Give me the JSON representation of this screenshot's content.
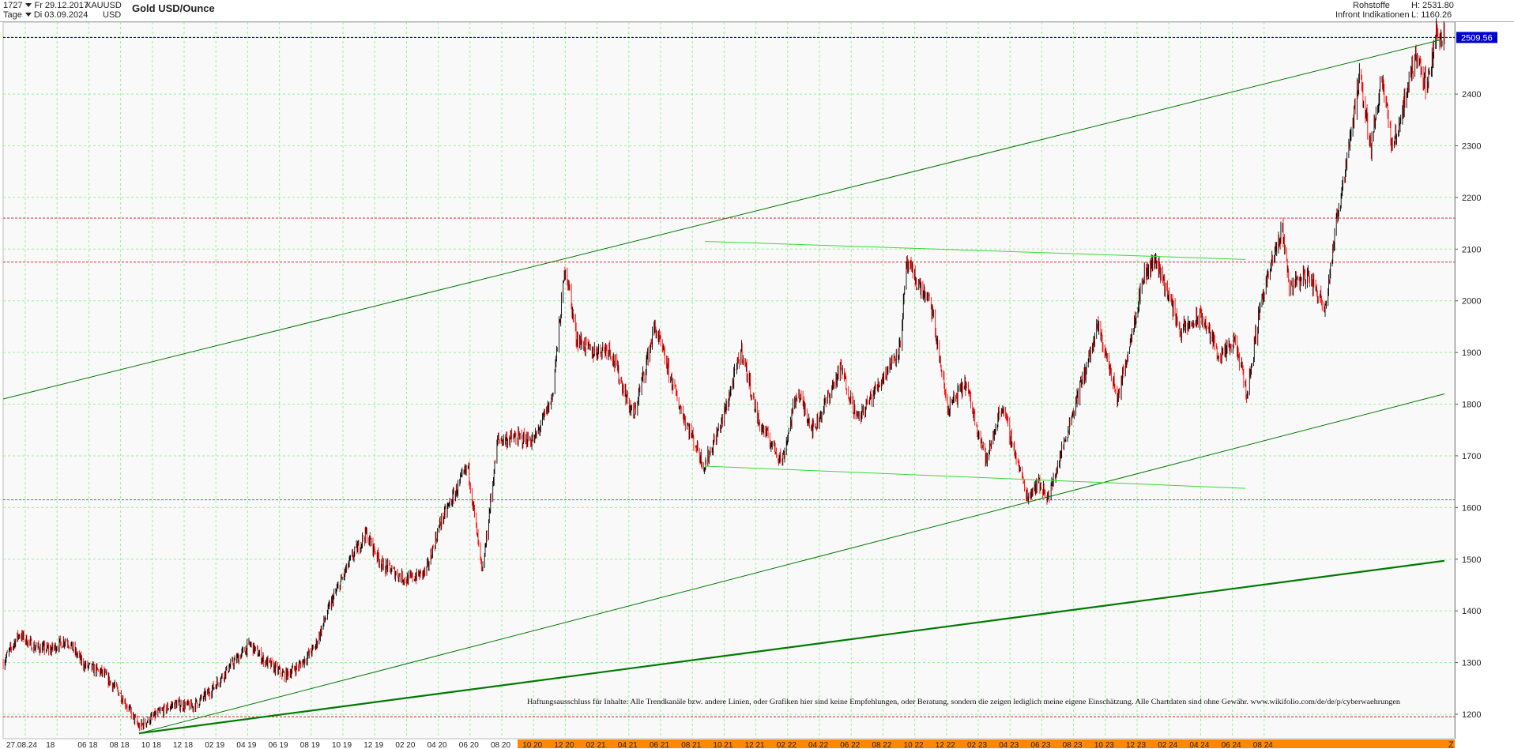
{
  "header": {
    "bars": "1727",
    "date_from": "Fr 29.12.2017",
    "period": "Tage",
    "date_to": "Di 03.09.2024",
    "symbol": "XAUUSD",
    "currency": "USD",
    "title": "Gold USD/Ounce",
    "category": "Rohstoffe",
    "source": "Infront Indikationen",
    "high_label": "H: 2531.80",
    "low_label": "L: 1160.26"
  },
  "disclaimer": "Haftungsausschluss für Inhalte: Alle Trendkanäle bzw. andere Linien, oder Grafiken hier sind keine Empfehlungen, oder Beratung, sondern die zeigen lediglich meine eigene Einschätzung. Alle Chartdaten sind ohne Gewähr.  www.wikifolio.com/de/de/p/cyberwaehrungen",
  "z_label": "Z",
  "colors": {
    "up_candle": "#000000",
    "down_candle": "#ff0000",
    "trendline": "#007a00",
    "light_trendline": "#33dd33",
    "last_price_bg": "#0000cc",
    "grid": "#99ee99",
    "time_band": "#ff8800"
  },
  "chart_data": {
    "type": "candlestick",
    "title": "Gold USD/Ounce",
    "xlabel": "",
    "ylabel": "",
    "x_range": [
      "2017-12-29",
      "2024-09-03"
    ],
    "ylim": [
      1160,
      2540
    ],
    "grid": true,
    "y_axis_position": "right",
    "y_ticks": [
      1200,
      1300,
      1400,
      1500,
      1600,
      1700,
      1800,
      1900,
      2000,
      2100,
      2200,
      2300,
      2400
    ],
    "x_tick_labels": [
      "27.08.24",
      "18",
      "06 18",
      "08 18",
      "10 18",
      "12 18",
      "02 19",
      "04 19",
      "06 19",
      "08 19",
      "10 19",
      "12 19",
      "02 20",
      "04 20",
      "06 20",
      "08 20",
      "10 20",
      "12 20",
      "02 21",
      "04 21",
      "06 21",
      "08 21",
      "10 21",
      "12 21",
      "02 22",
      "04 22",
      "06 22",
      "08 22",
      "10 22",
      "12 22",
      "02 23",
      "04 23",
      "06 23",
      "08 23",
      "10 23",
      "12 23",
      "02 24",
      "04 24",
      "06 24",
      "08 24"
    ],
    "last_price": 2509.56,
    "high": 2531.8,
    "low": 1160.26,
    "price_path": [
      [
        "2017-12-29",
        1300
      ],
      [
        "2018-01-25",
        1355
      ],
      [
        "2018-02-20",
        1330
      ],
      [
        "2018-03-20",
        1325
      ],
      [
        "2018-04-15",
        1345
      ],
      [
        "2018-05-15",
        1295
      ],
      [
        "2018-06-15",
        1280
      ],
      [
        "2018-07-15",
        1240
      ],
      [
        "2018-08-16",
        1175
      ],
      [
        "2018-09-15",
        1200
      ],
      [
        "2018-10-15",
        1220
      ],
      [
        "2018-11-15",
        1215
      ],
      [
        "2018-12-15",
        1245
      ],
      [
        "2019-01-15",
        1290
      ],
      [
        "2019-02-20",
        1335
      ],
      [
        "2019-03-15",
        1305
      ],
      [
        "2019-04-20",
        1275
      ],
      [
        "2019-05-15",
        1295
      ],
      [
        "2019-06-10",
        1330
      ],
      [
        "2019-07-05",
        1410
      ],
      [
        "2019-08-10",
        1500
      ],
      [
        "2019-09-04",
        1550
      ],
      [
        "2019-10-01",
        1490
      ],
      [
        "2019-11-12",
        1460
      ],
      [
        "2019-12-15",
        1475
      ],
      [
        "2020-01-08",
        1570
      ],
      [
        "2020-02-24",
        1680
      ],
      [
        "2020-03-19",
        1470
      ],
      [
        "2020-04-14",
        1730
      ],
      [
        "2020-05-15",
        1735
      ],
      [
        "2020-06-15",
        1730
      ],
      [
        "2020-07-15",
        1810
      ],
      [
        "2020-08-07",
        2070
      ],
      [
        "2020-08-25",
        1930
      ],
      [
        "2020-09-20",
        1900
      ],
      [
        "2020-10-20",
        1910
      ],
      [
        "2020-11-30",
        1775
      ],
      [
        "2021-01-05",
        1950
      ],
      [
        "2021-02-15",
        1800
      ],
      [
        "2021-03-30",
        1680
      ],
      [
        "2021-04-30",
        1770
      ],
      [
        "2021-06-01",
        1905
      ],
      [
        "2021-06-30",
        1765
      ],
      [
        "2021-08-09",
        1690
      ],
      [
        "2021-09-03",
        1825
      ],
      [
        "2021-10-01",
        1750
      ],
      [
        "2021-11-16",
        1870
      ],
      [
        "2021-12-15",
        1770
      ],
      [
        "2022-01-25",
        1850
      ],
      [
        "2022-02-24",
        1910
      ],
      [
        "2022-03-08",
        2070
      ],
      [
        "2022-04-18",
        1990
      ],
      [
        "2022-05-16",
        1790
      ],
      [
        "2022-06-15",
        1840
      ],
      [
        "2022-07-21",
        1690
      ],
      [
        "2022-08-15",
        1800
      ],
      [
        "2022-09-28",
        1620
      ],
      [
        "2022-10-15",
        1650
      ],
      [
        "2022-11-03",
        1620
      ],
      [
        "2022-12-15",
        1790
      ],
      [
        "2023-01-26",
        1950
      ],
      [
        "2023-02-28",
        1810
      ],
      [
        "2023-04-13",
        2050
      ],
      [
        "2023-05-04",
        2080
      ],
      [
        "2023-06-15",
        1940
      ],
      [
        "2023-07-20",
        1970
      ],
      [
        "2023-08-21",
        1890
      ],
      [
        "2023-09-15",
        1920
      ],
      [
        "2023-10-05",
        1820
      ],
      [
        "2023-10-28",
        2000
      ],
      [
        "2023-12-04",
        2140
      ],
      [
        "2023-12-15",
        2030
      ],
      [
        "2024-01-15",
        2050
      ],
      [
        "2024-02-14",
        1990
      ],
      [
        "2024-03-08",
        2180
      ],
      [
        "2024-04-12",
        2430
      ],
      [
        "2024-05-02",
        2300
      ],
      [
        "2024-05-20",
        2440
      ],
      [
        "2024-06-07",
        2290
      ],
      [
        "2024-07-17",
        2480
      ],
      [
        "2024-08-05",
        2410
      ],
      [
        "2024-08-20",
        2520
      ],
      [
        "2024-09-03",
        2509.56
      ]
    ],
    "horizontal_levels": [
      {
        "price": 2509.56,
        "style": "dotted",
        "color": "#0000cc"
      },
      {
        "price": 2160,
        "style": "dotted",
        "color": "#dd4444"
      },
      {
        "price": 2075,
        "style": "dotted",
        "color": "#dd4444"
      },
      {
        "price": 1615,
        "style": "dotted",
        "color": "#22bb22"
      },
      {
        "price": 1195,
        "style": "dotted",
        "color": "#dd4444"
      }
    ],
    "trendlines": [
      {
        "from": [
          "2017-12-29",
          1810
        ],
        "to": [
          "2024-08-28",
          2505
        ],
        "color": "#007a00",
        "width": 1
      },
      {
        "from": [
          "2018-08-16",
          1163
        ],
        "to": [
          "2024-09-03",
          1820
        ],
        "color": "#007a00",
        "width": 1
      },
      {
        "from": [
          "2018-08-16",
          1163
        ],
        "to": [
          "2024-09-03",
          1497
        ],
        "color": "#007a00",
        "width": 2.2
      },
      {
        "from": [
          "2021-03-31",
          2115
        ],
        "to": [
          "2023-10-02",
          2080
        ],
        "color": "#33dd33",
        "width": 1
      },
      {
        "from": [
          "2021-03-31",
          1680
        ],
        "to": [
          "2023-10-02",
          1637
        ],
        "color": "#33dd33",
        "width": 1
      }
    ]
  }
}
